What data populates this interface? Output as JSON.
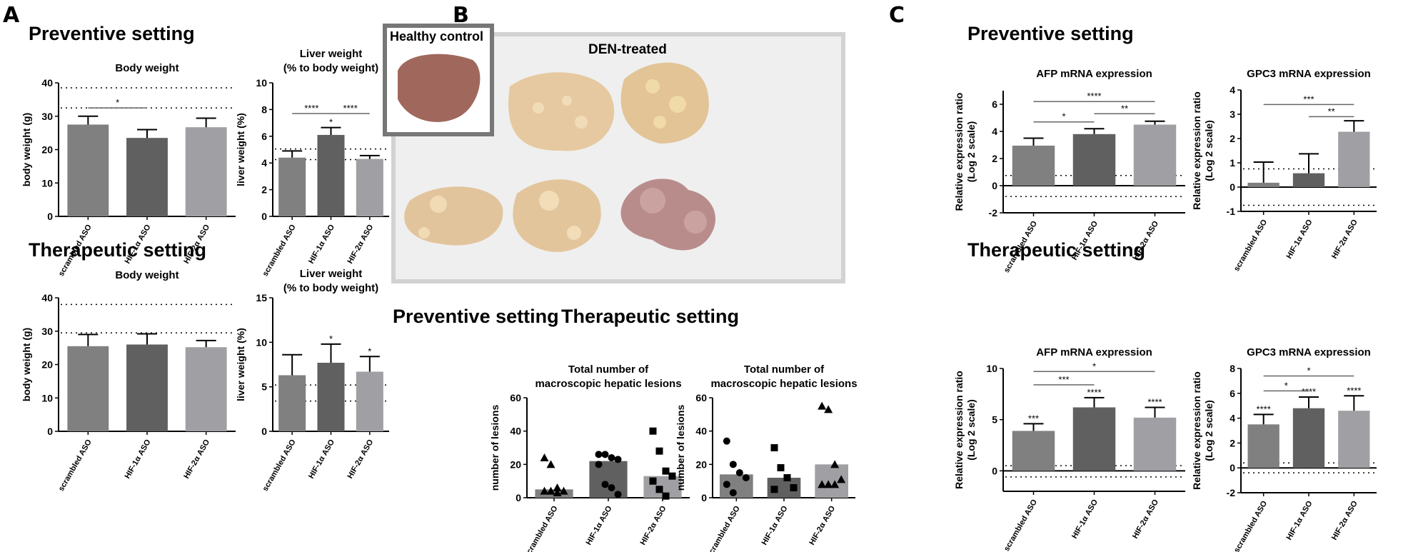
{
  "panels": {
    "a": "A",
    "b": "B",
    "c": "C"
  },
  "headings": {
    "a_preventive": "Preventive setting",
    "a_therapeutic": "Therapeutic setting",
    "b_preventive": "Preventive setting",
    "b_therapeutic": "Therapeutic setting",
    "c_preventive": "Preventive setting",
    "c_therapeutic": "Therapeutic setting"
  },
  "photos": {
    "healthy_label": "Healthy control",
    "den_label": "DEN-treated"
  },
  "colors": {
    "scrambled": "#808080",
    "hif1": "#606060",
    "hif2": "#a0a0a4"
  },
  "chart_data": [
    {
      "id": "a-prev-body",
      "type": "bar",
      "title": "Body weight",
      "ylabel": "body weight (g)",
      "categories": [
        "scrambled ASO",
        "HIF-1α ASO",
        "HIF-2α ASO"
      ],
      "values": [
        27.5,
        23.5,
        26.7
      ],
      "errors": [
        2.5,
        2.5,
        2.7
      ],
      "ylim": [
        0,
        40
      ],
      "yticks": [
        0,
        10,
        20,
        30,
        40
      ],
      "reference_lines": [
        38.5,
        32.5
      ],
      "bar_labels": [
        "",
        "",
        ""
      ],
      "significance": [
        {
          "from": 0,
          "to": 1,
          "label": "*",
          "y": 32.5
        }
      ]
    },
    {
      "id": "a-prev-liver",
      "type": "bar",
      "title": "Liver weight\n(% to body weight)",
      "ylabel": "liver weight (%)",
      "categories": [
        "scrambled ASO",
        "HIF-1α ASO",
        "HIF-2α ASO"
      ],
      "values": [
        4.4,
        6.1,
        4.3
      ],
      "errors": [
        0.5,
        0.55,
        0.25
      ],
      "ylim": [
        0,
        10
      ],
      "yticks": [
        0,
        2,
        4,
        6,
        8,
        10
      ],
      "reference_lines": [
        5.05,
        4.25
      ],
      "bar_labels": [
        "",
        "*",
        ""
      ],
      "significance": [
        {
          "from": 0,
          "to": 1,
          "label": "****",
          "y": 7.7
        },
        {
          "from": 1,
          "to": 2,
          "label": "****",
          "y": 7.7
        }
      ]
    },
    {
      "id": "a-ther-body",
      "type": "bar",
      "title": "Body weight",
      "ylabel": "body weight (g)",
      "categories": [
        "scrambled ASO",
        "HIF-1α ASO",
        "HIF-2α ASO"
      ],
      "values": [
        25.5,
        26,
        25.2
      ],
      "errors": [
        3.5,
        3.2,
        2
      ],
      "ylim": [
        0,
        40
      ],
      "yticks": [
        0,
        10,
        20,
        30,
        40
      ],
      "reference_lines": [
        38,
        29.5
      ],
      "bar_labels": [
        "",
        "",
        ""
      ],
      "significance": []
    },
    {
      "id": "a-ther-liver",
      "type": "bar",
      "title": "Liver weight\n(% to body weight)",
      "ylabel": "liver weight (%)",
      "categories": [
        "scrambled ASO",
        "HIF-1α ASO",
        "HIF-2α ASO"
      ],
      "values": [
        6.3,
        7.7,
        6.7
      ],
      "errors": [
        2.3,
        2.1,
        1.7
      ],
      "ylim": [
        0,
        15
      ],
      "yticks": [
        0,
        5,
        10,
        15
      ],
      "reference_lines": [
        5.2,
        3.4
      ],
      "bar_labels": [
        "",
        "*",
        "*"
      ],
      "significance": []
    },
    {
      "id": "b-prev-lesions",
      "type": "bar+scatter",
      "title": "Total number of\nmacroscopic hepatic lesions",
      "ylabel": "number of lesions",
      "categories": [
        "scrambled ASO",
        "HIF-1α ASO",
        "HIF-2α ASO"
      ],
      "values": [
        5,
        22,
        13
      ],
      "points": [
        [
          24,
          20,
          6,
          4,
          4,
          4,
          3
        ],
        [
          26,
          26,
          24,
          23,
          20,
          8,
          6,
          2
        ],
        [
          40,
          28,
          16,
          13,
          10,
          5,
          1
        ]
      ],
      "markers": [
        "triangle",
        "circle",
        "square"
      ],
      "ylim": [
        0,
        60
      ],
      "yticks": [
        0,
        20,
        40,
        60
      ]
    },
    {
      "id": "b-ther-lesions",
      "type": "bar+scatter",
      "title": "Total number of\nmacroscopic hepatic lesions",
      "ylabel": "number of lesions",
      "categories": [
        "scrambled ASO",
        "HIF-1α ASO",
        "HIF-2α ASO"
      ],
      "values": [
        14,
        12,
        20
      ],
      "points": [
        [
          34,
          20,
          15,
          12,
          8,
          3
        ],
        [
          30,
          18,
          12,
          6,
          5
        ],
        [
          55,
          53,
          20,
          11,
          8,
          8,
          8
        ]
      ],
      "markers": [
        "circle",
        "square",
        "triangle"
      ],
      "ylim": [
        0,
        60
      ],
      "yticks": [
        0,
        20,
        40,
        60
      ]
    },
    {
      "id": "c-prev-afp",
      "type": "bar",
      "title": "AFP mRNA expression",
      "ylabel": "Relative expression ratio\n(Log 2 scale)",
      "categories": [
        "scrambled ASO",
        "HIF-1α ASO",
        "HIF-2α ASO"
      ],
      "values": [
        2.95,
        3.8,
        4.5
      ],
      "errors": [
        0.55,
        0.4,
        0.25
      ],
      "ylim": [
        -2,
        7
      ],
      "yticks": [
        -2,
        0,
        2,
        4,
        6
      ],
      "reference_lines": [
        0.75,
        -0.8
      ],
      "bar_labels": [
        "",
        "",
        ""
      ],
      "significance": [
        {
          "from": 0,
          "to": 1,
          "label": "*",
          "y": 4.7
        },
        {
          "from": 1,
          "to": 2,
          "label": "**",
          "y": 5.3
        },
        {
          "from": 0,
          "to": 2,
          "label": "****",
          "y": 6.2
        }
      ]
    },
    {
      "id": "c-prev-gpc3",
      "type": "bar",
      "title": "GPC3 mRNA expression",
      "ylabel": "Relative expression ratio\n(Log 2 scale)",
      "categories": [
        "scrambled ASO",
        "HIF-1α ASO",
        "HIF-2α ASO"
      ],
      "values": [
        0.18,
        0.57,
        2.28
      ],
      "errors": [
        0.85,
        0.8,
        0.45
      ],
      "ylim": [
        -1,
        4
      ],
      "yticks": [
        -1,
        0,
        1,
        2,
        3,
        4
      ],
      "reference_lines": [
        0.75,
        -0.75
      ],
      "bar_labels": [
        "",
        "",
        ""
      ],
      "significance": [
        {
          "from": 1,
          "to": 2,
          "label": "**",
          "y": 2.9
        },
        {
          "from": 0,
          "to": 2,
          "label": "***",
          "y": 3.4
        }
      ]
    },
    {
      "id": "c-ther-afp",
      "type": "bar",
      "title": "AFP mRNA expression",
      "ylabel": "Relative expression ratio\n(Log 2 scale)",
      "categories": [
        "scrambled ASO",
        "HIF-1α ASO",
        "HIF-2α ASO"
      ],
      "values": [
        3.9,
        6.2,
        5.2
      ],
      "errors": [
        0.7,
        0.95,
        1.0
      ],
      "ylim": [
        -2,
        10
      ],
      "yticks": [
        0,
        5,
        10
      ],
      "reference_lines": [
        0.5,
        -0.6
      ],
      "bar_labels": [
        "***",
        "****",
        "****"
      ],
      "significance": [
        {
          "from": 0,
          "to": 1,
          "label": "***",
          "y": 8.4
        },
        {
          "from": 0,
          "to": 2,
          "label": "*",
          "y": 9.7
        }
      ]
    },
    {
      "id": "c-ther-gpc3",
      "type": "bar",
      "title": "GPC3 mRNA expression",
      "ylabel": "Relative expression ratio\n(Log 2 scale)",
      "categories": [
        "scrambled ASO",
        "HIF-1α ASO",
        "HIF-2α ASO"
      ],
      "values": [
        3.5,
        4.8,
        4.6
      ],
      "errors": [
        0.8,
        0.9,
        1.2
      ],
      "ylim": [
        -2,
        8
      ],
      "yticks": [
        -2,
        0,
        2,
        4,
        6,
        8
      ],
      "reference_lines": [
        0.4,
        -0.4
      ],
      "bar_labels": [
        "****",
        "****",
        "****"
      ],
      "significance": [
        {
          "from": 0,
          "to": 1,
          "label": "*",
          "y": 6.2
        },
        {
          "from": 0,
          "to": 2,
          "label": "*",
          "y": 7.4
        }
      ]
    }
  ]
}
